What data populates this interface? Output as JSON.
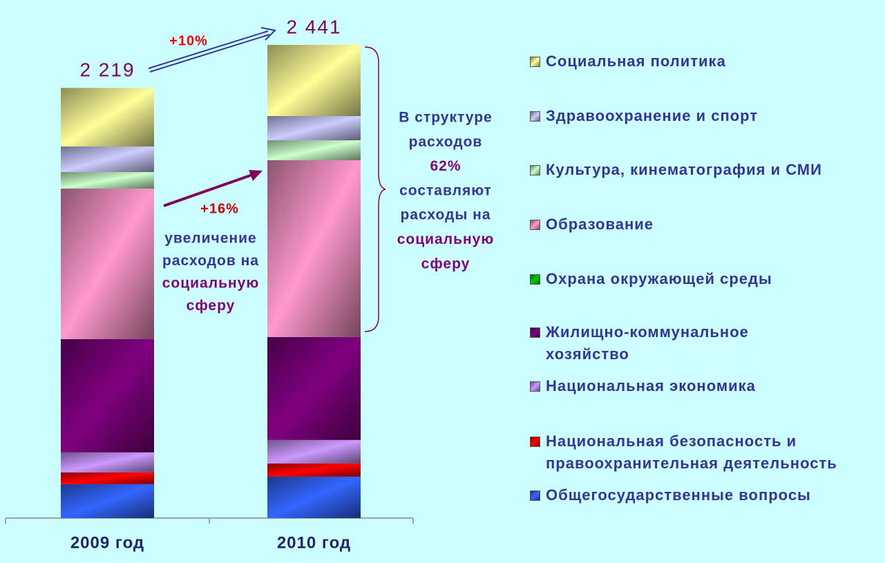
{
  "chart_data": {
    "type": "bar",
    "stacked": true,
    "categories": [
      "2009 год",
      "2010 год"
    ],
    "series": [
      {
        "name": "Общегосударственные вопросы",
        "color": "#3366ff",
        "values": [
          175,
          214
        ]
      },
      {
        "name": "Национальная безопасность и\nправоохранительная деятельность",
        "color": "#ff0000",
        "values": [
          61,
          68
        ]
      },
      {
        "name": "Национальная экономика",
        "color": "#cc99ff",
        "values": [
          103,
          121
        ]
      },
      {
        "name": "Жилищно-коммунальное\nхозяйство",
        "color": "#800080",
        "values": [
          584,
          531
        ]
      },
      {
        "name": "Охрана окружающей среды",
        "color": "#00cc00",
        "values": [
          0,
          0
        ]
      },
      {
        "name": "Образование",
        "color": "#ff99cc",
        "values": [
          777,
          912
        ]
      },
      {
        "name": "Культура, кинематография и СМИ",
        "color": "#ccffcc",
        "values": [
          85,
          103
        ]
      },
      {
        "name": "Здравоохранение и спорт",
        "color": "#ccccff",
        "values": [
          132,
          125
        ]
      },
      {
        "name": "Социальная политика",
        "color": "#ffff99",
        "values": [
          302,
          367
        ]
      }
    ],
    "totals": [
      2219,
      2441
    ],
    "total_labels": [
      "2 219",
      "2 441"
    ],
    "growth_labels": [
      "+10%",
      "+16%"
    ],
    "note_left": [
      {
        "text": "увеличение",
        "color": "#333399"
      },
      {
        "text": "расходов на",
        "color": "#333399"
      },
      {
        "text": "социальную",
        "color": "#800080"
      },
      {
        "text": "сферу",
        "color": "#800080"
      }
    ],
    "note_right": [
      {
        "text": "В структуре",
        "color": "#333399"
      },
      {
        "text": "расходов",
        "color": "#333399"
      },
      {
        "text": "62%",
        "color": "#800080"
      },
      {
        "text": "составляют",
        "color": "#333399"
      },
      {
        "text": "расходы на",
        "color": "#333399"
      },
      {
        "text": "социальную",
        "color": "#800080"
      },
      {
        "text": "сферу",
        "color": "#800080"
      }
    ],
    "legend": "right"
  }
}
